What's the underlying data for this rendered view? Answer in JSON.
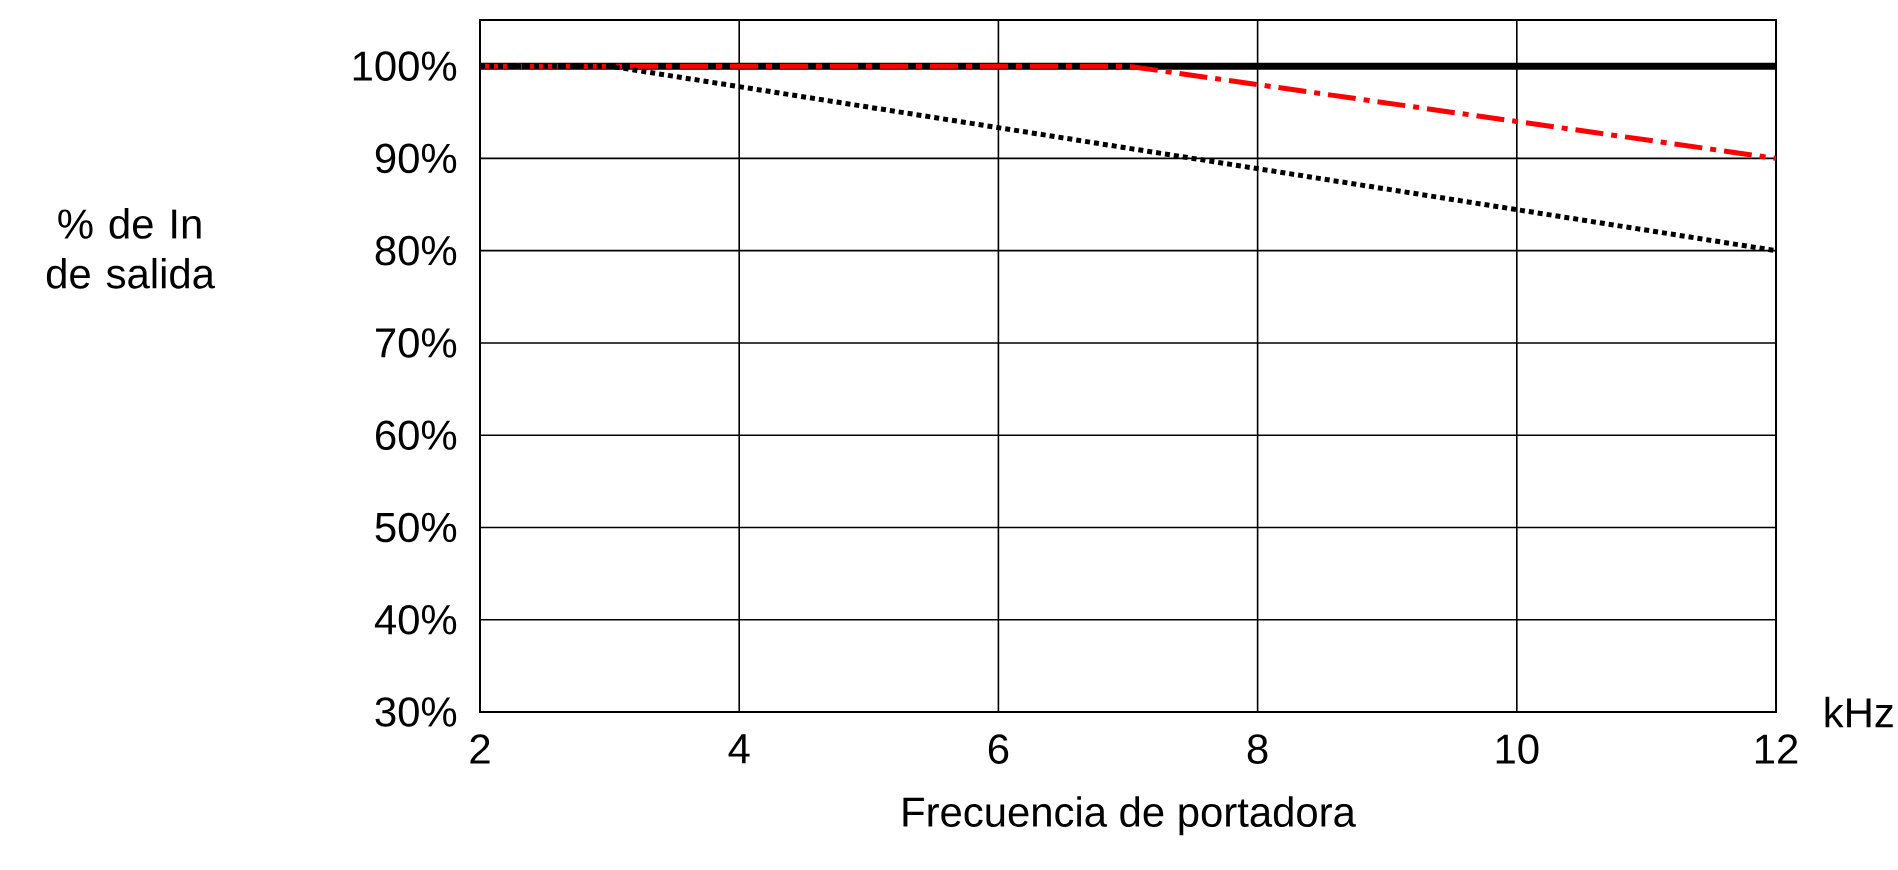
{
  "chart_data": {
    "type": "line",
    "xlabel": "Frecuencia de portadora",
    "ylabel": "% de In de salida",
    "annotations": [
      "kHz"
    ],
    "xlim": [
      2,
      12
    ],
    "ylim": [
      30,
      105
    ],
    "xticks": [
      2,
      4,
      6,
      8,
      10,
      12
    ],
    "yticks": [
      {
        "value": 30,
        "label": "30%"
      },
      {
        "value": 40,
        "label": "40%"
      },
      {
        "value": 50,
        "label": "50%"
      },
      {
        "value": 60,
        "label": "60%"
      },
      {
        "value": 70,
        "label": "70%"
      },
      {
        "value": 80,
        "label": "80%"
      },
      {
        "value": 90,
        "label": "90%"
      },
      {
        "value": 100,
        "label": "100%"
      }
    ],
    "grid": true,
    "marker": "none",
    "ref_lines": [
      {
        "axis": "y",
        "value": 100,
        "color": "#000000",
        "line_style": "solid"
      }
    ],
    "series": [
      {
        "color": "#ff0000",
        "line_style": "dashdot",
        "x": [
          2,
          7,
          12
        ],
        "values": [
          100,
          100,
          90
        ]
      },
      {
        "color": "#000000",
        "line_style": "dotted",
        "x": [
          2,
          3,
          12
        ],
        "values": [
          100,
          100,
          80
        ]
      }
    ]
  }
}
